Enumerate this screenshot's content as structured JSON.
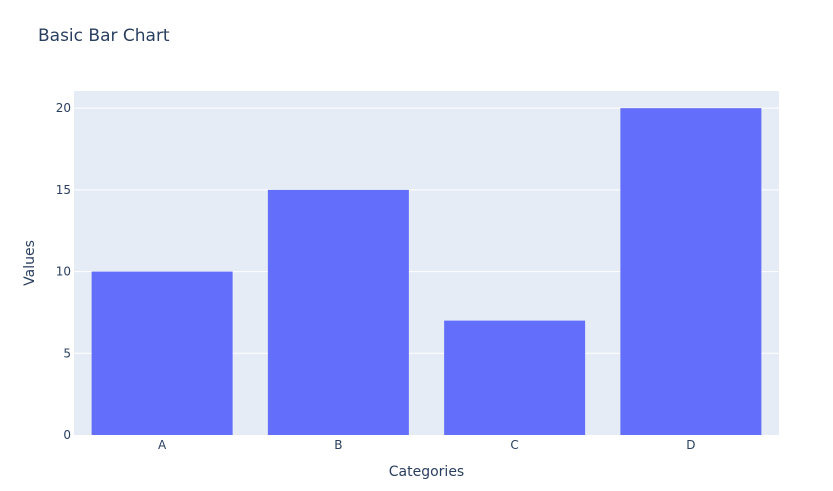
{
  "chart_data": {
    "type": "bar",
    "title": "Basic Bar Chart",
    "xlabel": "Categories",
    "ylabel": "Values",
    "categories": [
      "A",
      "B",
      "C",
      "D"
    ],
    "values": [
      10,
      15,
      7,
      20
    ],
    "ylim": [
      0,
      21.05
    ],
    "yticks": [
      0,
      5,
      10,
      15,
      20
    ],
    "grid": true,
    "colors": {
      "bar": "#636efa",
      "plot_bg": "#e5ecf6",
      "grid": "#ffffff",
      "text": "#2a3f5f"
    }
  }
}
